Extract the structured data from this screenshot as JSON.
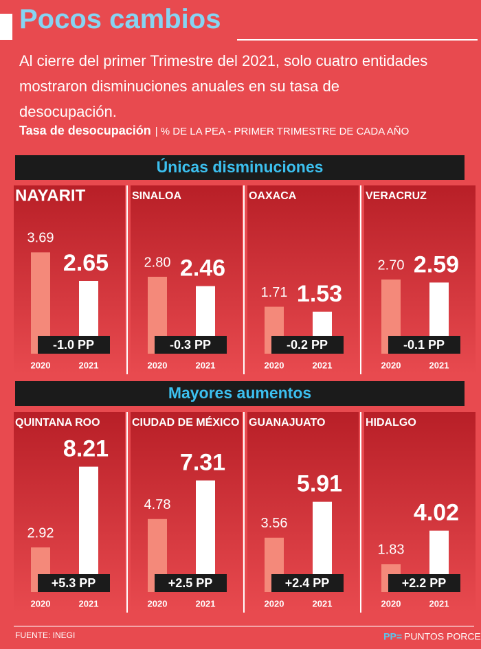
{
  "header": {
    "title": "Pocos cambios",
    "subtitle": "Al cierre del primer Trimestre del 2021, solo cuatro entidades mostraron disminuciones anuales en su tasa de desocupación.",
    "chart_label": "Tasa de desocupación",
    "chart_unit": "| % DE LA PEA - PRIMER TRIMESTRE DE CADA AÑO"
  },
  "sections": [
    "Únicas disminuciones",
    "Mayores  aumentos"
  ],
  "chart_data": [
    {
      "type": "bar",
      "title": "NAYARIT",
      "categories": [
        "2020",
        "2021"
      ],
      "values": [
        3.69,
        2.65
      ],
      "value_labels": [
        "3.69",
        "2.65"
      ],
      "annotation": "-1.0 PP",
      "ylim": [
        0,
        4
      ],
      "colors": [
        "#f4897a",
        "#ffffff"
      ]
    },
    {
      "type": "bar",
      "title": "SINALOA",
      "categories": [
        "2020",
        "2021"
      ],
      "values": [
        2.8,
        2.46
      ],
      "value_labels": [
        "2.80",
        "2.46"
      ],
      "annotation": "-0.3 PP",
      "ylim": [
        0,
        4
      ],
      "colors": [
        "#f4897a",
        "#ffffff"
      ]
    },
    {
      "type": "bar",
      "title": "OAXACA",
      "categories": [
        "2020",
        "2021"
      ],
      "values": [
        1.71,
        1.53
      ],
      "value_labels": [
        "1.71",
        "1.53"
      ],
      "annotation": "-0.2 PP",
      "ylim": [
        0,
        4
      ],
      "colors": [
        "#f4897a",
        "#ffffff"
      ]
    },
    {
      "type": "bar",
      "title": "VERACRUZ",
      "categories": [
        "2020",
        "2021"
      ],
      "values": [
        2.7,
        2.59
      ],
      "value_labels": [
        "2.70",
        "2.59"
      ],
      "annotation": "-0.1 PP",
      "ylim": [
        0,
        4
      ],
      "colors": [
        "#f4897a",
        "#ffffff"
      ]
    },
    {
      "type": "bar",
      "title": "QUINTANA ROO",
      "categories": [
        "2020",
        "2021"
      ],
      "values": [
        2.92,
        8.21
      ],
      "value_labels": [
        "2.92",
        "8.21"
      ],
      "annotation": "+5.3 PP",
      "ylim": [
        0,
        9
      ],
      "colors": [
        "#f4897a",
        "#ffffff"
      ]
    },
    {
      "type": "bar",
      "title": "CIUDAD DE MÉXICO",
      "categories": [
        "2020",
        "2021"
      ],
      "values": [
        4.78,
        7.31
      ],
      "value_labels": [
        "4.78",
        "7.31"
      ],
      "annotation": "+2.5 PP",
      "ylim": [
        0,
        9
      ],
      "colors": [
        "#f4897a",
        "#ffffff"
      ]
    },
    {
      "type": "bar",
      "title": "GUANAJUATO",
      "categories": [
        "2020",
        "2021"
      ],
      "values": [
        3.56,
        5.91
      ],
      "value_labels": [
        "3.56",
        "5.91"
      ],
      "annotation": "+2.4 PP",
      "ylim": [
        0,
        9
      ],
      "colors": [
        "#f4897a",
        "#ffffff"
      ]
    },
    {
      "type": "bar",
      "title": "HIDALGO",
      "categories": [
        "2020",
        "2021"
      ],
      "values": [
        1.83,
        4.02
      ],
      "value_labels": [
        "1.83",
        "4.02"
      ],
      "annotation": "+2.2 PP",
      "ylim": [
        0,
        9
      ],
      "colors": [
        "#f4897a",
        "#ffffff"
      ]
    }
  ],
  "footer": {
    "source": "FUENTE: INEGI",
    "pp_key": "PP=",
    "pp_definition": "PUNTOS PORCENTUALES"
  }
}
